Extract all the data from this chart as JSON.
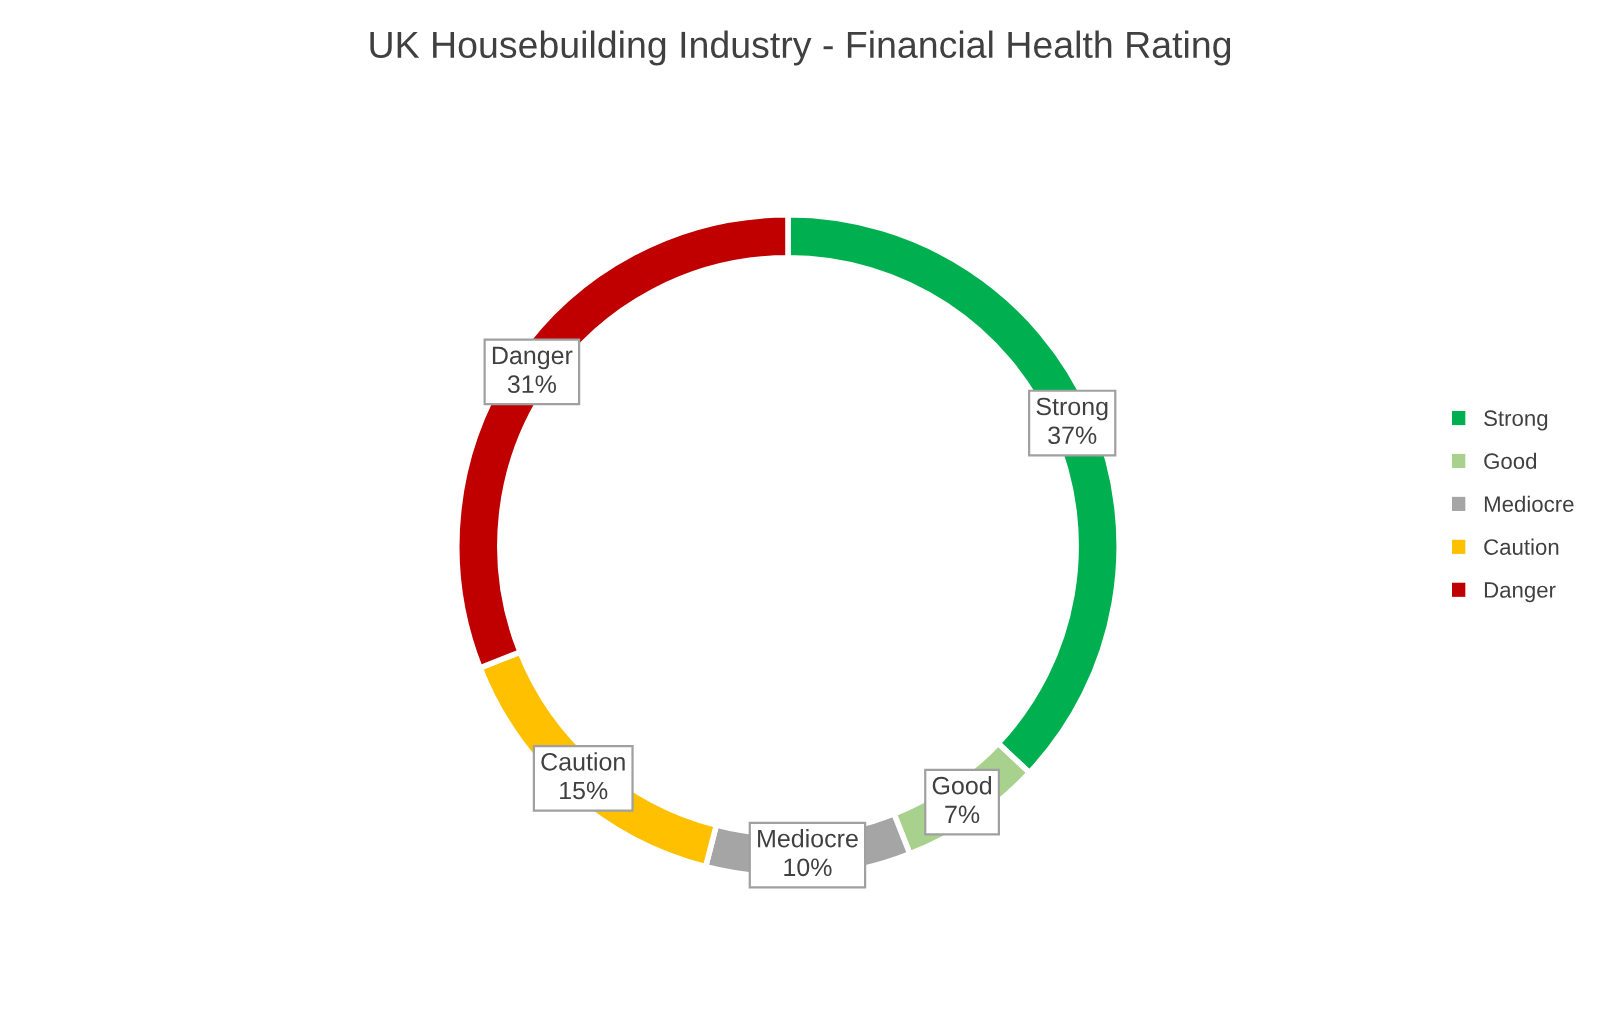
{
  "chart_data": {
    "type": "donut",
    "title": "UK Housebuilding Industry - Financial Health Rating",
    "categories": [
      "Strong",
      "Good",
      "Mediocre",
      "Caution",
      "Danger"
    ],
    "values": [
      37,
      7,
      10,
      15,
      31
    ],
    "colors": [
      "#00b050",
      "#a9d18e",
      "#a5a5a5",
      "#ffc000",
      "#c00000"
    ],
    "value_labels": [
      "37%",
      "7%",
      "10%",
      "15%",
      "31%"
    ],
    "legend": "right"
  }
}
